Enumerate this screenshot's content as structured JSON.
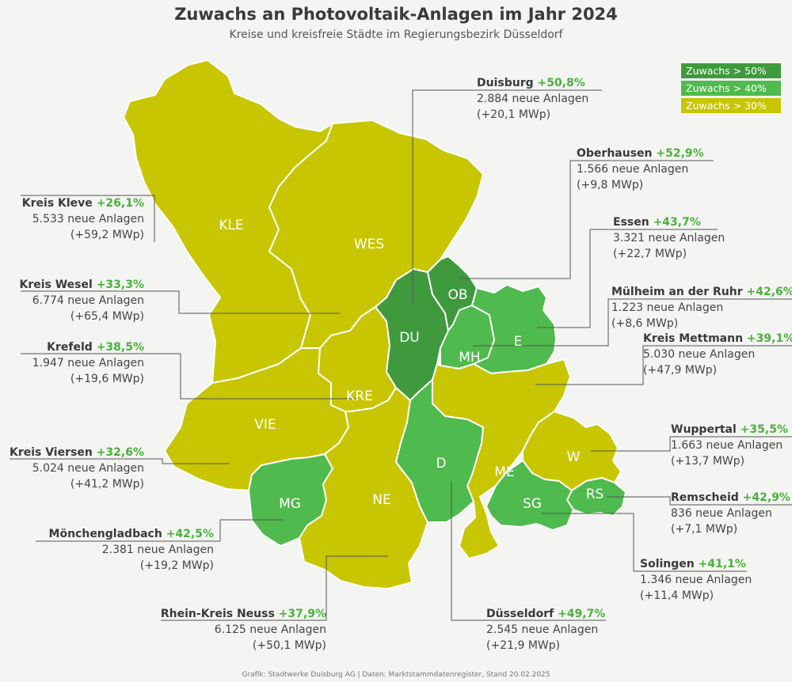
{
  "title": "Zuwachs an Photovoltaik-Anlagen im Jahr 2024",
  "subtitle": "Kreise und kreisfreie Städte im Regierungsbezirk Düsseldorf",
  "credit": "Grafik: Stadtwerke Duisburg AG | Daten: Marktstammdatenregister, Stand 20.02.2025",
  "colors": {
    "gt50": "#3f9a3e",
    "gt40": "#4fba4d",
    "gt30": "#c7c600"
  },
  "legend": [
    {
      "label": "Zuwachs > 50%",
      "color": "#3f9a3e"
    },
    {
      "label": "Zuwachs > 40%",
      "color": "#4fba4d"
    },
    {
      "label": "Zuwachs > 30%",
      "color": "#c7c600"
    }
  ],
  "regions": {
    "kle": {
      "abbr": "KLE",
      "name": "Kreis Kleve",
      "pct": "+26,1%",
      "anlagen": "5.533 neue Anlagen",
      "mwp": "(+59,2 MWp)"
    },
    "wes": {
      "abbr": "WES",
      "name": "Kreis Wesel",
      "pct": "+33,3%",
      "anlagen": "6.774 neue Anlagen",
      "mwp": "(+65,4 MWp)"
    },
    "kre": {
      "abbr": "KRE",
      "name": "Krefeld",
      "pct": "+38,5%",
      "anlagen": "1.947 neue Anlagen",
      "mwp": "(+19,6 MWp)"
    },
    "vie": {
      "abbr": "VIE",
      "name": "Kreis Viersen",
      "pct": "+32,6%",
      "anlagen": "5.024 neue Anlagen",
      "mwp": "(+41,2 MWp)"
    },
    "mg": {
      "abbr": "MG",
      "name": "Mönchengladbach",
      "pct": "+42,5%",
      "anlagen": "2.381 neue Anlagen",
      "mwp": "(+19,2 MWp)"
    },
    "ne": {
      "abbr": "NE",
      "name": "Rhein-Kreis Neuss",
      "pct": "+37,9%",
      "anlagen": "6.125 neue Anlagen",
      "mwp": "(+50,1 MWp)"
    },
    "du": {
      "abbr": "DU",
      "name": "Duisburg",
      "pct": "+50,8%",
      "anlagen": "2.884 neue Anlagen",
      "mwp": "(+20,1 MWp)"
    },
    "ob": {
      "abbr": "OB",
      "name": "Oberhausen",
      "pct": "+52,9%",
      "anlagen": "1.566 neue Anlagen",
      "mwp": "(+9,8 MWp)"
    },
    "e": {
      "abbr": "E",
      "name": "Essen",
      "pct": "+43,7%",
      "anlagen": "3.321 neue Anlagen",
      "mwp": "(+22,7 MWp)"
    },
    "mh": {
      "abbr": "MH",
      "name": "Mülheim an der Ruhr",
      "pct": "+42,6%",
      "anlagen": "1.223 neue Anlagen",
      "mwp": "(+8,6 MWp)"
    },
    "me": {
      "abbr": "ME",
      "name": "Kreis Mettmann",
      "pct": "+39,1%",
      "anlagen": "5.030 neue Anlagen",
      "mwp": "(+47,9 MWp)"
    },
    "w": {
      "abbr": "W",
      "name": "Wuppertal",
      "pct": "+35,5%",
      "anlagen": "1.663 neue Anlagen",
      "mwp": "(+13,7 MWp)"
    },
    "rs": {
      "abbr": "RS",
      "name": "Remscheid",
      "pct": "+42,9%",
      "anlagen": "836 neue Anlagen",
      "mwp": "(+7,1 MWp)"
    },
    "sg": {
      "abbr": "SG",
      "name": "Solingen",
      "pct": "+41,1%",
      "anlagen": "1.346 neue Anlagen",
      "mwp": "(+11,4 MWp)"
    },
    "d": {
      "abbr": "D",
      "name": "Düsseldorf",
      "pct": "+49,7%",
      "anlagen": "2.545 neue Anlagen",
      "mwp": "(+21,9 MWp)"
    }
  }
}
